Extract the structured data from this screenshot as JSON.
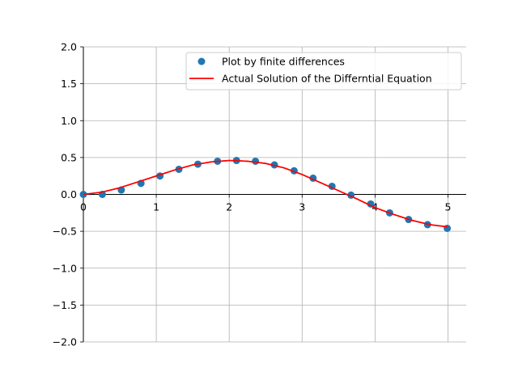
{
  "chart_data": {
    "type": "scatter",
    "title": "",
    "xlabel": "",
    "ylabel": "",
    "xlim": [
      0,
      5.25
    ],
    "ylim": [
      -2.0,
      2.0
    ],
    "grid": true,
    "legend_position": "top-right",
    "x_ticks": [
      0,
      1,
      2,
      3,
      4,
      5
    ],
    "x_tick_labels": [
      "0",
      "1",
      "2",
      "3",
      "4",
      "5"
    ],
    "y_ticks": [
      -2.0,
      -1.5,
      -1.0,
      -0.5,
      0.0,
      0.5,
      1.0,
      1.5,
      2.0
    ],
    "y_tick_labels": [
      "−2.0",
      "−1.5",
      "−1.0",
      "−0.5",
      "0.0",
      "0.5",
      "1.0",
      "1.5",
      "2.0"
    ],
    "series": [
      {
        "name": "Plot by finite differences",
        "kind": "scatter",
        "color": "#1f77b4",
        "x": [
          0.0,
          0.26,
          0.52,
          0.79,
          1.05,
          1.31,
          1.57,
          1.84,
          2.1,
          2.36,
          2.62,
          2.89,
          3.15,
          3.41,
          3.67,
          3.94,
          4.2,
          4.46,
          4.72,
          4.99
        ],
        "y": [
          0.0,
          0.0,
          0.06,
          0.15,
          0.25,
          0.34,
          0.41,
          0.45,
          0.46,
          0.45,
          0.4,
          0.32,
          0.22,
          0.11,
          -0.01,
          -0.13,
          -0.25,
          -0.34,
          -0.41,
          -0.46
        ]
      },
      {
        "name": "Actual Solution of the Differntial Equation",
        "kind": "line",
        "color": "#ff0000",
        "x": [
          0.0,
          0.25,
          0.5,
          0.75,
          1.0,
          1.25,
          1.5,
          1.75,
          2.0,
          2.25,
          2.5,
          2.75,
          3.0,
          3.25,
          3.5,
          3.75,
          4.0,
          4.25,
          4.5,
          4.75,
          5.0
        ],
        "y": [
          0.0,
          0.03,
          0.09,
          0.17,
          0.25,
          0.33,
          0.4,
          0.44,
          0.46,
          0.45,
          0.42,
          0.36,
          0.27,
          0.16,
          0.05,
          -0.06,
          -0.18,
          -0.27,
          -0.35,
          -0.41,
          -0.44
        ]
      }
    ]
  }
}
